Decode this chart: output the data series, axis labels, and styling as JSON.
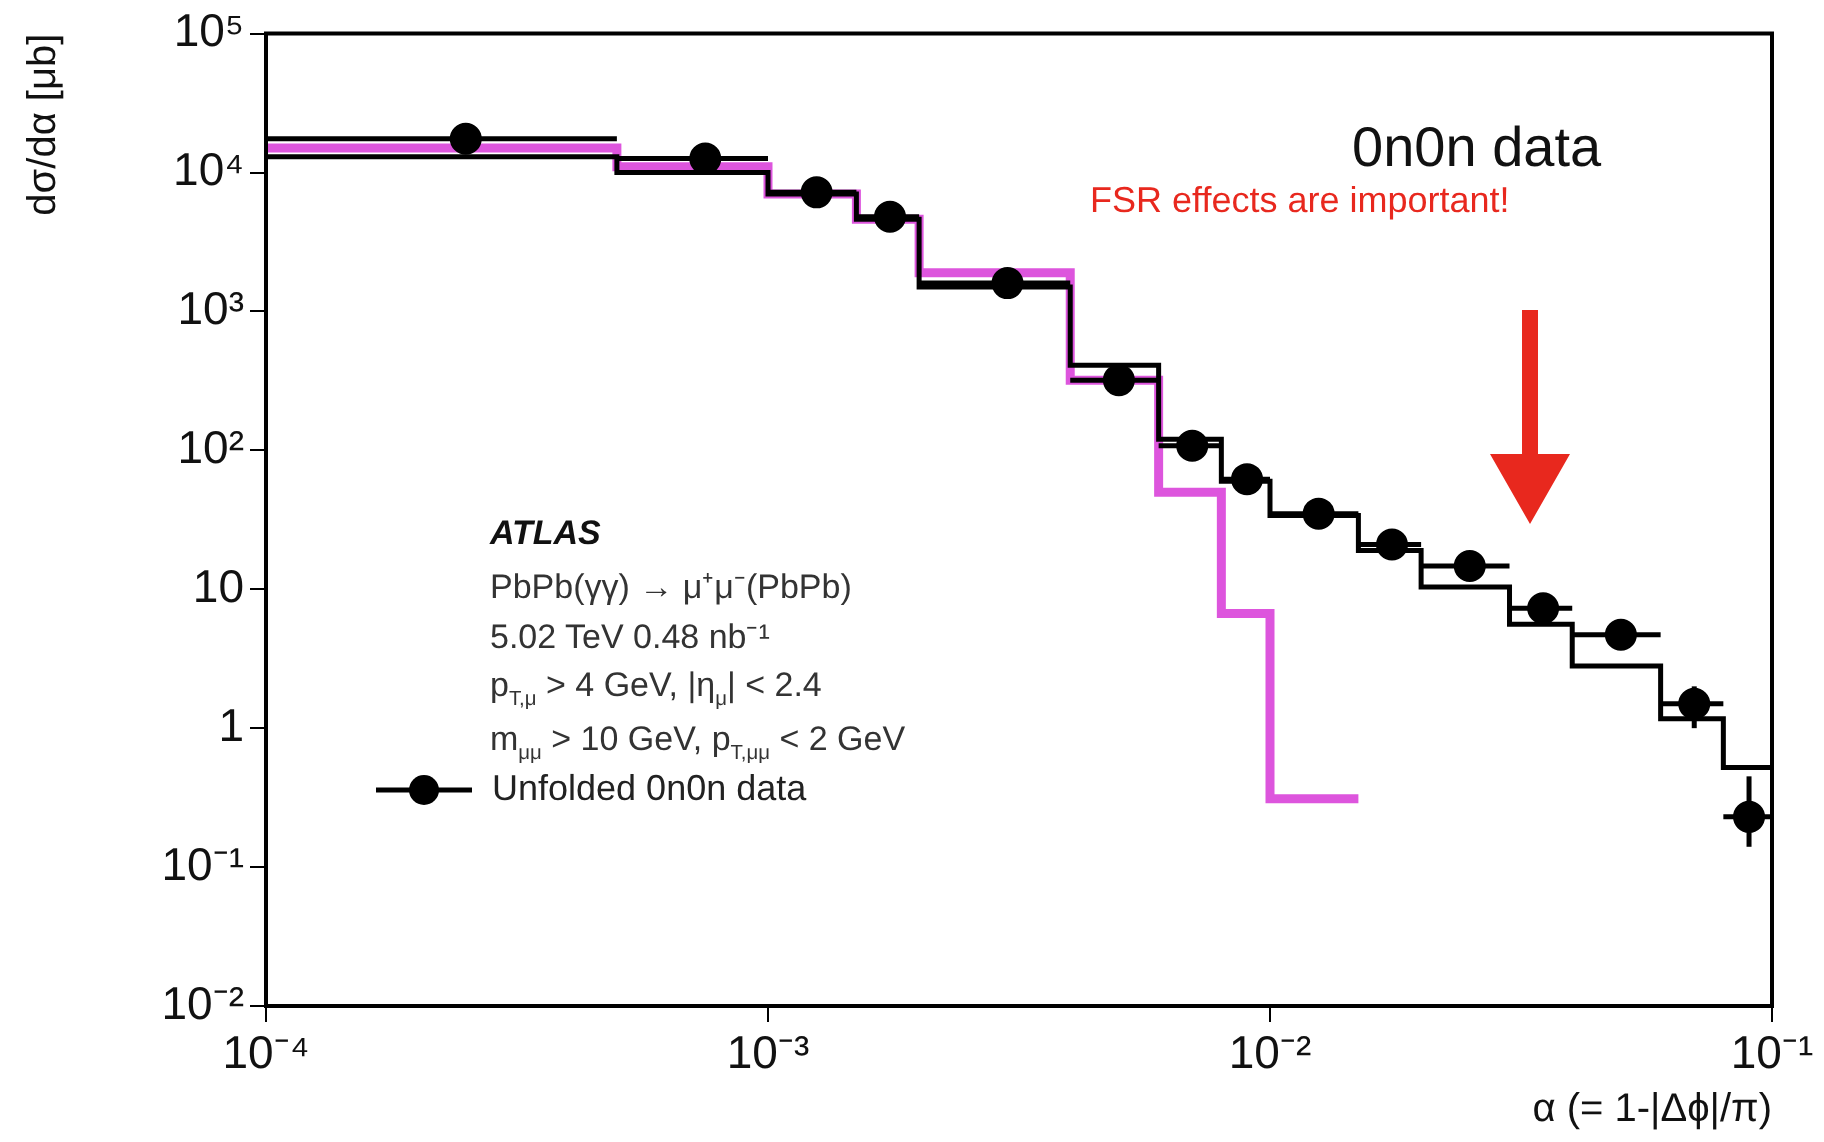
{
  "chart_data": {
    "type": "step",
    "xlabel": "α (= 1-|Δϕ|/π)",
    "ylabel": "dσ/dα [μb]",
    "log": "xy",
    "grid": false,
    "legend": "bottom left",
    "marker": "circle",
    "xlim": [
      0.0001,
      0.1
    ],
    "xticks": [
      {
        "value": 0.0001,
        "label": "10⁻⁴"
      },
      {
        "value": 0.001,
        "label": "10⁻³"
      },
      {
        "value": 0.01,
        "label": "10⁻²"
      },
      {
        "value": 0.1,
        "label": "10⁻¹"
      }
    ],
    "ylim": [
      0.01,
      100000
    ],
    "yticks": [
      {
        "value": 0.01,
        "label": "10⁻²"
      },
      {
        "value": 0.1,
        "label": "10⁻¹"
      },
      1,
      10,
      {
        "value": 100,
        "label": "10²"
      },
      {
        "value": 1000,
        "label": "10³"
      },
      {
        "value": 10000,
        "label": "10⁴"
      },
      {
        "value": 100000,
        "label": "10⁵"
      }
    ],
    "x": [
      0.0001,
      0.0005,
      0.001,
      0.0015,
      0.002,
      0.004,
      0.006,
      0.008,
      0.01,
      0.015,
      0.02,
      0.03,
      0.04,
      0.06,
      0.08,
      0.1
    ],
    "series": [
      {
        "color": "#000000",
        "marker": "none",
        "values": [
          13000,
          10000,
          7000,
          4600,
          1500,
          410,
          120,
          60,
          34,
          19,
          10.4,
          5.6,
          2.8,
          1.17,
          0.52,
          0.52
        ]
      },
      {
        "color": "#dd55dd",
        "marker": "none",
        "values": [
          15000,
          11000,
          7000,
          4600,
          1900,
          320,
          50,
          6.7,
          0.31,
          0.31,
          null,
          null,
          null,
          null,
          null,
          null
        ]
      },
      {
        "type": "scatter",
        "name": "Unfolded 0n0n data",
        "color": "#000000",
        "x": [
          0.00025,
          0.00075,
          0.00125,
          0.00175,
          0.003,
          0.005,
          0.007,
          0.009,
          0.0125,
          0.0175,
          0.025,
          0.035,
          0.05,
          0.07,
          0.09
        ],
        "values": [
          17500,
          12600,
          7200,
          4800,
          1600,
          320,
          108,
          62,
          35,
          21,
          14.7,
          7.3,
          4.7,
          1.5,
          0.23
        ],
        "xerrors": [
          [
            0.0001,
            0.0005
          ],
          [
            0.0005,
            0.001
          ],
          [
            0.001,
            0.0015
          ],
          [
            0.0015,
            0.002
          ],
          [
            0.002,
            0.004
          ],
          [
            0.004,
            0.006
          ],
          [
            0.006,
            0.008
          ],
          [
            0.008,
            0.01
          ],
          [
            0.01,
            0.015
          ],
          [
            0.015,
            0.02
          ],
          [
            0.02,
            0.03
          ],
          [
            0.03,
            0.04
          ],
          [
            0.04,
            0.06
          ],
          [
            0.06,
            0.08
          ],
          [
            0.08,
            0.1
          ]
        ],
        "errors": [
          null,
          null,
          null,
          null,
          null,
          null,
          null,
          null,
          null,
          null,
          null,
          null,
          null,
          [
            1.0,
            2.0
          ],
          [
            0.14,
            0.45
          ]
        ]
      }
    ],
    "annotations": [
      "0n0n data",
      "FSR effects are important!",
      "ATLAS",
      "PbPb(γγ) → μ⁺μ⁻(PbPb)",
      "5.02 TeV 0.48 nb⁻¹",
      "p$_{T,μ}$ > 4 GeV, |η$_{μ}$| < 2.4",
      "m$_{μμ}$ > 10 GeV, p$_{T,μμ}$ < 2 GeV"
    ]
  }
}
